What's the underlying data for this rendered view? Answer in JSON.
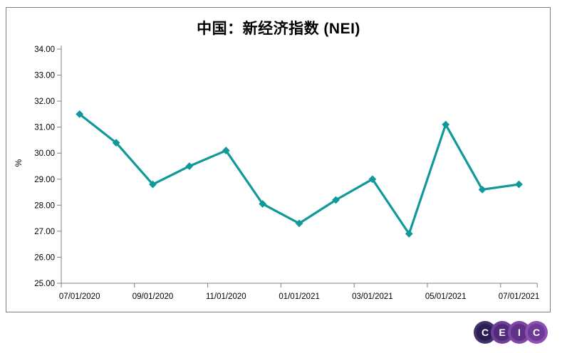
{
  "chart_data": {
    "type": "line",
    "title": "中国：新经济指数 (NEI)",
    "xlabel": "",
    "ylabel": "%",
    "ylim": [
      25.0,
      34.0
    ],
    "y_tick_step": 1.0,
    "y_tick_labels": [
      "34.00",
      "33.00",
      "32.00",
      "31.00",
      "30.00",
      "29.00",
      "28.00",
      "27.00",
      "26.00",
      "25.00"
    ],
    "x_tick_labels": [
      "07/01/2020",
      "09/01/2020",
      "11/01/2020",
      "01/01/2021",
      "03/01/2021",
      "05/01/2021",
      "07/01/2021"
    ],
    "categories": [
      "07/01/2020",
      "08/01/2020",
      "09/01/2020",
      "10/01/2020",
      "11/01/2020",
      "12/01/2020",
      "01/01/2021",
      "02/01/2021",
      "03/01/2021",
      "04/01/2021",
      "05/01/2021",
      "06/01/2021",
      "07/01/2021"
    ],
    "values": [
      31.5,
      30.4,
      28.8,
      29.5,
      30.1,
      28.05,
      27.3,
      28.2,
      29.0,
      26.9,
      31.1,
      28.6,
      28.8
    ],
    "grid": false,
    "legend": "none",
    "marker": "diamond",
    "line_color": "#0F999B",
    "marker_color": "#0F999B",
    "axis_color": "#808080",
    "text_color": "#000000",
    "border_color": "#7F7F7F"
  },
  "logo": {
    "name": "CEIC",
    "letter_color": "#FFFFFF",
    "circles": [
      {
        "letter": "C",
        "outer": "#44306C",
        "inner": "#2A1F55"
      },
      {
        "letter": "E",
        "outer": "#713F98",
        "inner": "#52297B"
      },
      {
        "letter": "I",
        "outer": "#7F47A4",
        "inner": "#5F3189"
      },
      {
        "letter": "C",
        "outer": "#8C50B0",
        "inner": "#6D3A97"
      }
    ]
  }
}
